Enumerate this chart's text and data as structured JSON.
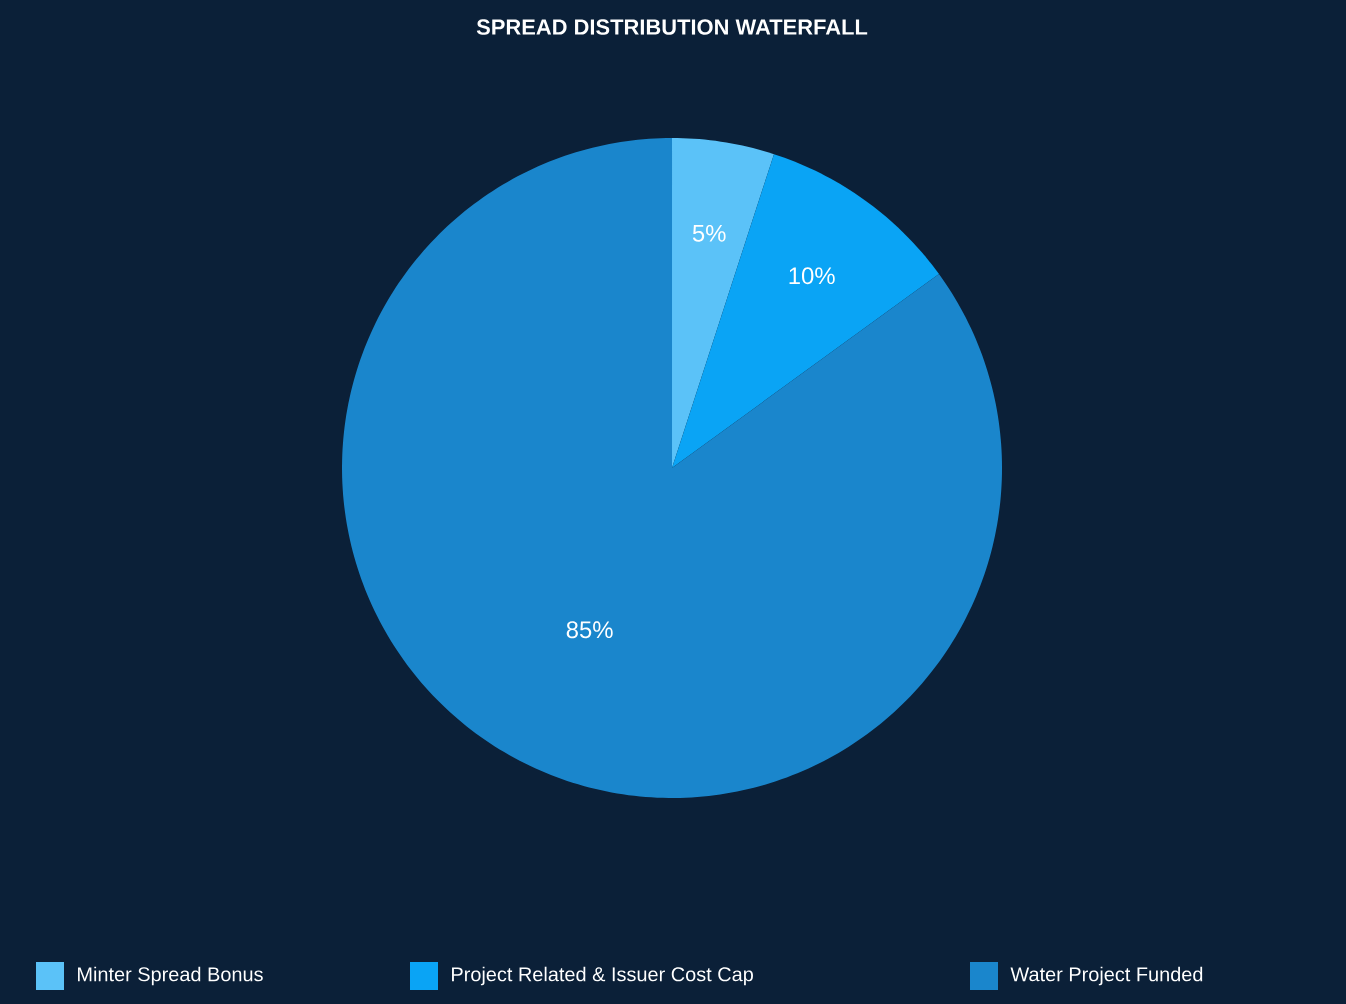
{
  "chart_data": {
    "type": "pie",
    "title": "SPREAD DISTRIBUTION WATERFALL",
    "categories": [
      "Minter Spread Bonus",
      "Project Related & Issuer Cost Cap",
      "Water Project Funded"
    ],
    "values": [
      5,
      10,
      85
    ],
    "value_labels": [
      "5%",
      "10%",
      "85%"
    ],
    "colors": [
      "#5bc2f8",
      "#0aa4f5",
      "#1a86cc"
    ],
    "legend": "bottom"
  }
}
